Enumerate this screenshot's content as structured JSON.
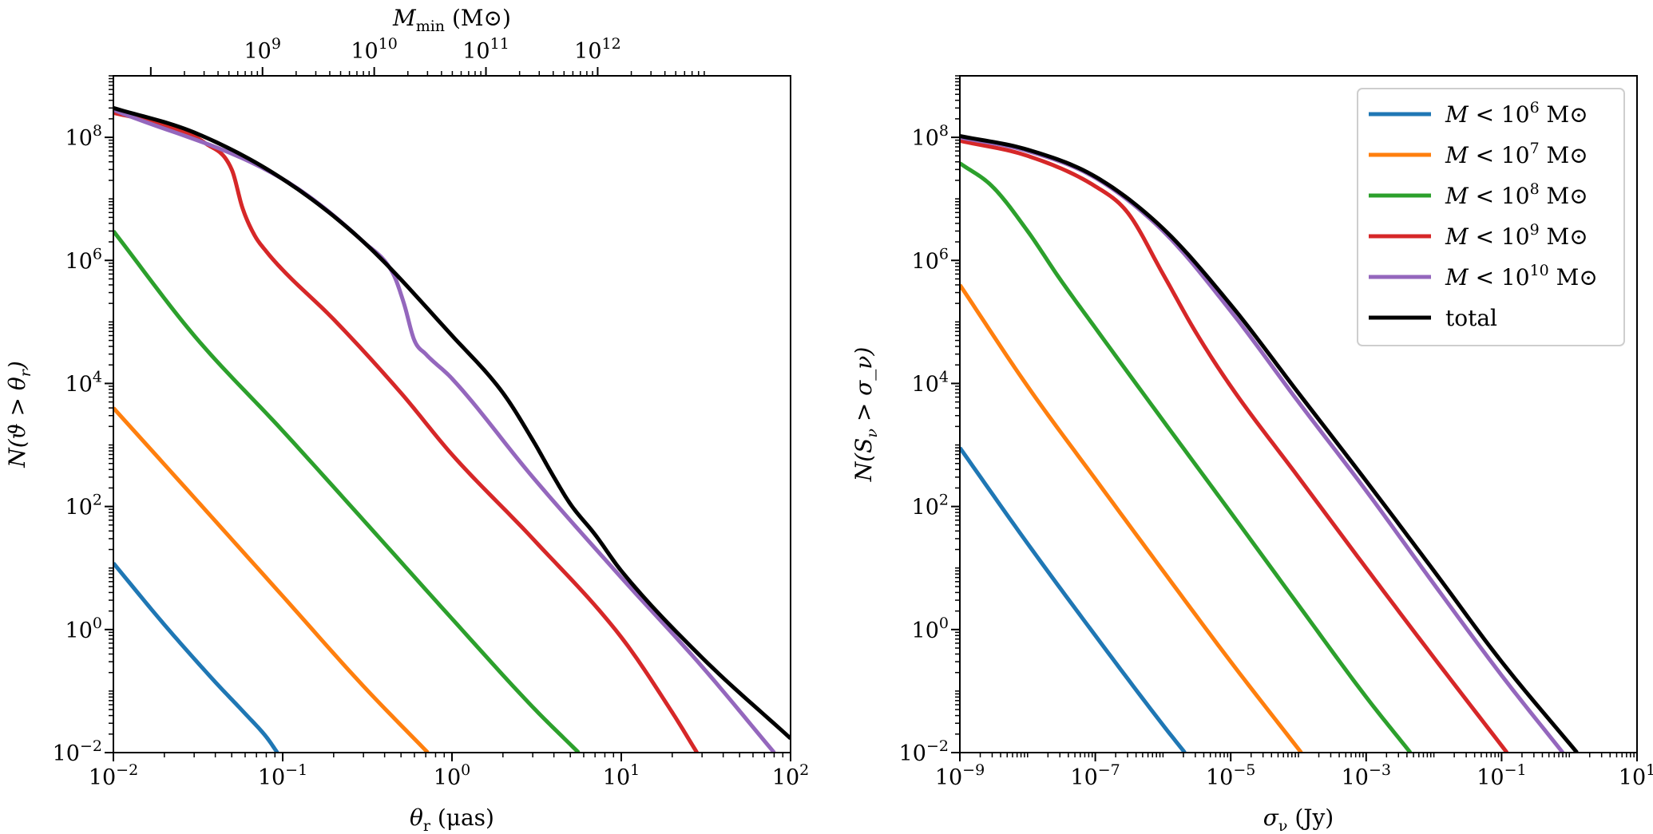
{
  "chart_data": [
    {
      "type": "line",
      "id": "left",
      "xscale": "log",
      "yscale": "log",
      "xlim": [
        0.01,
        100
      ],
      "ylim": [
        0.01,
        1000000000
      ],
      "xlabel": "θ_r (μas)",
      "ylabel": "N(ϑ > θ_r)",
      "xticks": [
        {
          "value": 0.01,
          "base": "10",
          "exp": "−2"
        },
        {
          "value": 0.1,
          "base": "10",
          "exp": "−1"
        },
        {
          "value": 1,
          "base": "10",
          "exp": "0"
        },
        {
          "value": 10,
          "base": "10",
          "exp": "1"
        },
        {
          "value": 100,
          "base": "10",
          "exp": "2"
        }
      ],
      "yticks": [
        {
          "value": 0.01,
          "base": "10",
          "exp": "−2"
        },
        {
          "value": 1,
          "base": "10",
          "exp": "0"
        },
        {
          "value": 100,
          "base": "10",
          "exp": "2"
        },
        {
          "value": 10000,
          "base": "10",
          "exp": "4"
        },
        {
          "value": 1000000,
          "base": "10",
          "exp": "6"
        },
        {
          "value": 100000000,
          "base": "10",
          "exp": "8"
        }
      ],
      "top_axis": {
        "label": "M_min (M⊙)",
        "x_at_1e9": 0.076,
        "decade_factor": 4.57,
        "xticks": [
          {
            "value": 1000000000,
            "base": "10",
            "exp": "9"
          },
          {
            "value": 10000000000,
            "base": "10",
            "exp": "10"
          },
          {
            "value": 100000000000,
            "base": "10",
            "exp": "11"
          },
          {
            "value": 1000000000000,
            "base": "10",
            "exp": "12"
          }
        ]
      },
      "series": [
        {
          "name": "M < 10^6 M⊙",
          "color": "#1f77b4",
          "x": [
            0.01,
            0.02,
            0.04,
            0.06,
            0.08,
            0.093
          ],
          "y": [
            12,
            1.2,
            0.14,
            0.043,
            0.018,
            0.01
          ]
        },
        {
          "name": "M < 10^7 M⊙",
          "color": "#ff7f0e",
          "x": [
            0.01,
            0.03,
            0.1,
            0.3,
            0.72
          ],
          "y": [
            4000,
            140,
            3.5,
            0.12,
            0.01
          ]
        },
        {
          "name": "M < 10^8 M⊙",
          "color": "#2ca02c",
          "x": [
            0.01,
            0.03,
            0.1,
            0.3,
            1,
            3,
            5.6
          ],
          "y": [
            3000000,
            60000,
            1700,
            60,
            1.5,
            0.055,
            0.01
          ]
        },
        {
          "name": "M < 10^9 M⊙",
          "color": "#d62728",
          "x": [
            0.01,
            0.02,
            0.035,
            0.05,
            0.058,
            0.068,
            0.08,
            0.1,
            0.2,
            0.5,
            1,
            3,
            10,
            20,
            28
          ],
          "y": [
            250000000,
            160000000,
            80000000,
            30000000,
            7000000,
            2600000,
            1400000,
            700000,
            110000,
            7000,
            700,
            30,
            0.75,
            0.045,
            0.01
          ]
        },
        {
          "name": "M < 10^10 M⊙",
          "color": "#9467bd",
          "x": [
            0.01,
            0.1,
            0.3,
            0.45,
            0.52,
            0.6,
            0.7,
            1,
            3,
            10,
            30,
            80
          ],
          "y": [
            280000000,
            21000000,
            2000000,
            600000,
            200000,
            50000,
            30000,
            12000,
            300,
            7,
            0.25,
            0.01
          ]
        },
        {
          "name": "total",
          "color": "#000000",
          "x": [
            0.01,
            0.03,
            0.1,
            0.3,
            1,
            2,
            3,
            4,
            5,
            7,
            10,
            30,
            100
          ],
          "y": [
            300000000,
            120000000,
            21000000,
            2000000,
            60000,
            7000,
            1200,
            300,
            110,
            35,
            9,
            0.35,
            0.017
          ]
        }
      ]
    },
    {
      "type": "line",
      "id": "right",
      "xscale": "log",
      "yscale": "log",
      "xlim": [
        1e-09,
        10
      ],
      "ylim": [
        0.01,
        1000000000
      ],
      "xlabel": "σ_ν (Jy)",
      "ylabel": "N(S_ν > σ_ν)",
      "xticks": [
        {
          "value": 1e-09,
          "base": "10",
          "exp": "−9"
        },
        {
          "value": 1e-07,
          "base": "10",
          "exp": "−7"
        },
        {
          "value": 1e-05,
          "base": "10",
          "exp": "−5"
        },
        {
          "value": 0.001,
          "base": "10",
          "exp": "−3"
        },
        {
          "value": 0.1,
          "base": "10",
          "exp": "−1"
        },
        {
          "value": 10,
          "base": "10",
          "exp": "1"
        }
      ],
      "yticks": [
        {
          "value": 0.01,
          "base": "10",
          "exp": "−2"
        },
        {
          "value": 1,
          "base": "10",
          "exp": "0"
        },
        {
          "value": 100,
          "base": "10",
          "exp": "2"
        },
        {
          "value": 10000,
          "base": "10",
          "exp": "4"
        },
        {
          "value": 1000000,
          "base": "10",
          "exp": "6"
        },
        {
          "value": 100000000,
          "base": "10",
          "exp": "8"
        }
      ],
      "legend": {
        "position": "upper right"
      },
      "series": [
        {
          "name": "M < 10^6 M⊙",
          "color": "#1f77b4",
          "x": [
            1e-09,
            1e-08,
            1e-07,
            1e-06,
            2.1e-06
          ],
          "y": [
            900,
            25,
            0.8,
            0.028,
            0.01
          ]
        },
        {
          "name": "M < 10^7 M⊙",
          "color": "#ff7f0e",
          "x": [
            1e-09,
            1e-08,
            1e-07,
            1e-06,
            1e-05,
            0.00011
          ],
          "y": [
            400000,
            9000,
            280,
            9,
            0.3,
            0.01
          ]
        },
        {
          "name": "M < 10^8 M⊙",
          "color": "#2ca02c",
          "x": [
            1e-09,
            3e-09,
            1e-08,
            3e-08,
            1e-07,
            1e-06,
            1e-05,
            0.0001,
            0.001,
            0.0045
          ],
          "y": [
            38000000,
            16000000,
            3000000,
            500000,
            80000,
            2500,
            80,
            2.5,
            0.08,
            0.01
          ]
        },
        {
          "name": "M < 10^9 M⊙",
          "color": "#d62728",
          "x": [
            1e-09,
            1e-08,
            1e-07,
            3e-07,
            1e-06,
            3e-06,
            1e-05,
            0.0001,
            0.001,
            0.01,
            0.12
          ],
          "y": [
            88000000,
            50000000,
            16000000,
            6000000,
            600000,
            70000,
            9000,
            300,
            10,
            0.35,
            0.01
          ]
        },
        {
          "name": "M < 10^10 M⊙",
          "color": "#9467bd",
          "x": [
            1e-09,
            1e-08,
            1e-07,
            1e-06,
            1e-05,
            0.0001,
            0.001,
            0.01,
            0.1,
            0.8
          ],
          "y": [
            100000000,
            60000000,
            22000000,
            3000000,
            150000,
            5000,
            180,
            5.5,
            0.18,
            0.01
          ]
        },
        {
          "name": "total",
          "color": "#000000",
          "x": [
            1e-09,
            1e-08,
            1e-07,
            1e-06,
            1e-05,
            0.0001,
            0.001,
            0.01,
            0.1,
            1.3
          ],
          "y": [
            105000000,
            63000000,
            23000000,
            3300000,
            190000,
            7000,
            260,
            9,
            0.3,
            0.01
          ]
        }
      ]
    }
  ]
}
